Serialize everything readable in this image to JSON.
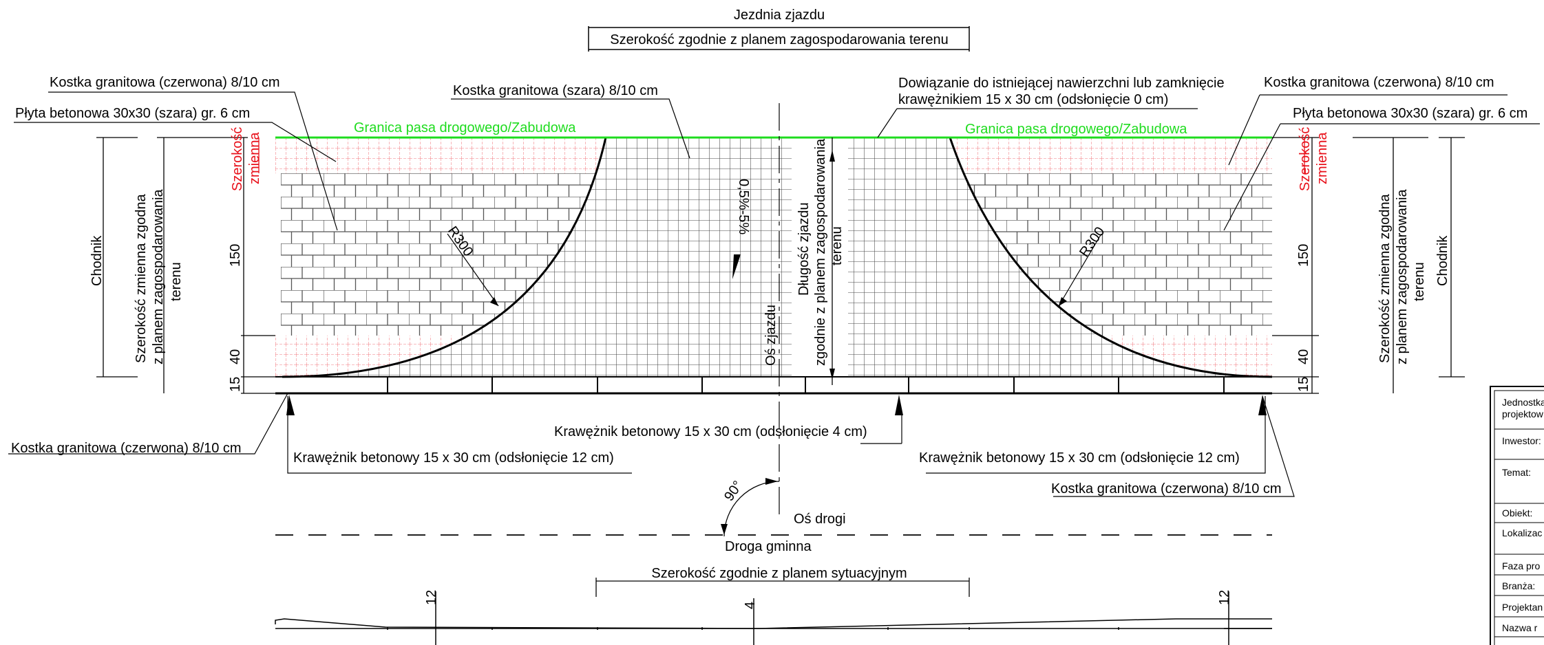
{
  "top": {
    "jezdnia_title": "Jezdnia zjazdu",
    "jezdnia_width": "Szerokość zgodnie z planem zagospodarowania terenu"
  },
  "labels": {
    "red_paver_top_left": "Kostka granitowa (czerwona) 8/10 cm",
    "slab_left": "Płyta betonowa 30x30 (szara) gr. 6 cm",
    "grey_paver": "Kostka granitowa (szara) 8/10 cm",
    "connection_line1": "Dowiązanie do istniejącej nawierzchni lub zamknięcie",
    "connection_line2": "krawężnikiem 15 x 30 cm (odsłonięcie 0 cm)",
    "red_paver_top_right": "Kostka granitowa (czerwona) 8/10 cm",
    "slab_right": "Płyta betonowa 30x30 (szara) gr. 6 cm",
    "boundary_left": "Granica pasa drogowego/Zabudowa",
    "boundary_right": "Granica pasa drogowego/Zabudowa",
    "red_paver_bottom_left": "Kostka granitowa (czerwona) 8/10 cm",
    "curb_left": "Krawężnik betonowy 15 x 30 cm (odsłonięcie 12 cm)",
    "curb_center": "Krawężnik betonowy 15 x 30 cm (odsłonięcie 4 cm)",
    "curb_right": "Krawężnik betonowy 15 x 30 cm (odsłonięcie 12 cm)",
    "red_paver_bottom_right": "Kostka granitowa (czerwona) 8/10 cm",
    "angle": "90°",
    "road_axis": "Oś drogi",
    "road_name": "Droga gminna",
    "situational_width": "Szerokość zgodnie z planem sytuacyjnym",
    "radius_left": "R300",
    "radius_right": "R300",
    "slope": "0,5%-5%",
    "access_axis": "Oś zjazdu",
    "access_length_line1": "Długość zjazdu",
    "access_length_line2": "zgodnie z planem zagospodarowania",
    "access_length_line3": "terenu"
  },
  "side_dims": {
    "variable_width_l1": "Szerokość",
    "variable_width_l2": "zmienna",
    "chodnik": "Chodnik",
    "sidewalk_width_l1": "Szerokość zmienna zgodna",
    "sidewalk_width_l2": "z planem zagospodarowania",
    "sidewalk_width_l3": "terenu",
    "d150": "150",
    "d40": "40",
    "d15": "15"
  },
  "profile": {
    "left_height": "12",
    "center_height": "4",
    "right_height": "12"
  },
  "title_block": {
    "row1_l1": "Jednostka",
    "row1_l2": "projektow",
    "row2": "Inwestor:",
    "row3": "Temat:",
    "row4": "Obiekt:",
    "row5": "Lokalizac",
    "row6": "Faza pro",
    "row7": "Branża:",
    "row8": "Projektan",
    "row9": "Nazwa r"
  },
  "colors": {
    "boundary_green": "#1edc1e",
    "red_zone": "#e8101a",
    "line": "#000000"
  }
}
